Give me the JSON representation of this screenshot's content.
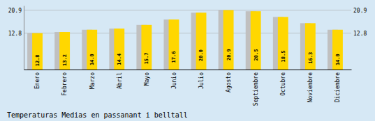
{
  "chart_data": {
    "type": "bar",
    "title": "Temperaturas Medias en passanant i belltall",
    "categories": [
      "Enero",
      "Febrero",
      "Marzo",
      "Abril",
      "Mayo",
      "Junio",
      "Julio",
      "Agosto",
      "Septiembre",
      "Octubre",
      "Noviembre",
      "Diciembre"
    ],
    "values": [
      12.8,
      13.2,
      14.0,
      14.4,
      15.7,
      17.6,
      20.0,
      20.9,
      20.5,
      18.5,
      16.3,
      14.0
    ],
    "value_labels": [
      "12.8",
      "13.2",
      "14.0",
      "14.4",
      "15.7",
      "17.6",
      "20.0",
      "20.9",
      "20.5",
      "18.5",
      "16.3",
      "14.0"
    ],
    "color": "#FFD700",
    "ylim": [
      0,
      22.5
    ],
    "yticks": [
      12.8,
      20.9
    ],
    "y2lim": [
      0,
      22.5
    ],
    "y2ticks": [
      12.8,
      20.9
    ],
    "grid": true,
    "data_labels": true
  }
}
